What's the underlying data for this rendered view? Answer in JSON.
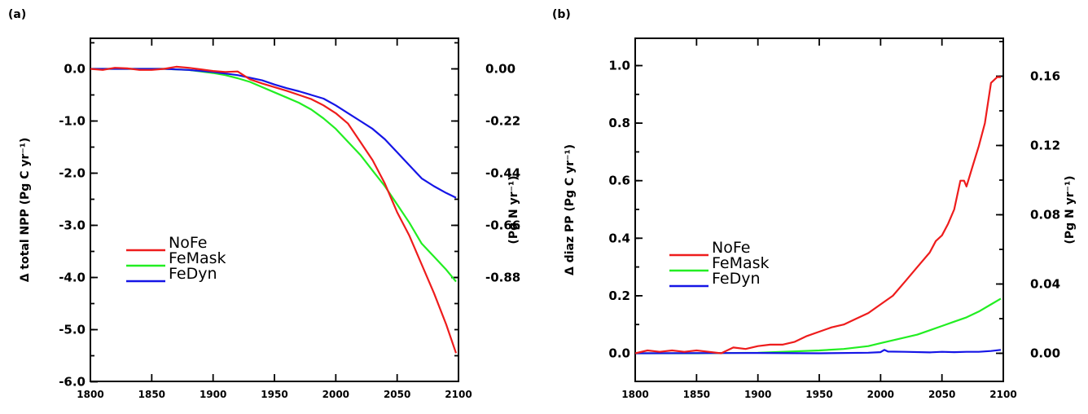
{
  "colors": {
    "NoFe": "#ee1c1c",
    "FeMask": "#22ee22",
    "FeDyn": "#1515e6"
  },
  "chart_data": [
    {
      "type": "line",
      "panel_label": "(a)",
      "ylabel": "Δ total NPP (Pg C yr⁻¹)",
      "ylabel_right": "(Pg N yr⁻¹)",
      "xlim": [
        1800,
        2100
      ],
      "ylim": [
        -6.0,
        0.6
      ],
      "x_ticks": [
        1800,
        1850,
        1900,
        1950,
        2000,
        2050,
        2100
      ],
      "y_ticks": [
        0.0,
        -1.0,
        -2.0,
        -3.0,
        -4.0,
        -5.0,
        -6.0
      ],
      "y_tick_labels": [
        "0.0",
        "-1.0",
        "-2.0",
        "-3.0",
        "-4.0",
        "-5.0",
        "-6.0"
      ],
      "y2_ticks": [
        0.0,
        -0.22,
        -0.44,
        -0.66,
        -0.88
      ],
      "y2_tick_labels": [
        "0.00",
        "-0.22",
        "-0.44",
        "-0.66",
        "-0.88"
      ],
      "legend_placement": "lower-left",
      "series": [
        {
          "name": "NoFe",
          "x": [
            1800,
            1810,
            1820,
            1830,
            1840,
            1850,
            1860,
            1870,
            1880,
            1890,
            1900,
            1910,
            1920,
            1930,
            1940,
            1950,
            1960,
            1970,
            1980,
            1990,
            2000,
            2010,
            2020,
            2030,
            2040,
            2050,
            2060,
            2070,
            2080,
            2090,
            2098
          ],
          "y": [
            0.0,
            -0.02,
            0.02,
            0.01,
            -0.02,
            -0.02,
            0.0,
            0.04,
            0.02,
            -0.01,
            -0.04,
            -0.06,
            -0.05,
            -0.2,
            -0.28,
            -0.35,
            -0.42,
            -0.5,
            -0.58,
            -0.7,
            -0.85,
            -1.05,
            -1.4,
            -1.75,
            -2.2,
            -2.75,
            -3.2,
            -3.75,
            -4.3,
            -4.9,
            -5.45
          ]
        },
        {
          "name": "FeMask",
          "x": [
            1800,
            1820,
            1840,
            1860,
            1880,
            1900,
            1910,
            1920,
            1930,
            1940,
            1950,
            1960,
            1970,
            1980,
            1990,
            2000,
            2010,
            2020,
            2030,
            2040,
            2050,
            2060,
            2070,
            2080,
            2090,
            2098
          ],
          "y": [
            0.0,
            0.0,
            0.0,
            0.0,
            -0.02,
            -0.08,
            -0.12,
            -0.18,
            -0.25,
            -0.35,
            -0.45,
            -0.55,
            -0.65,
            -0.78,
            -0.95,
            -1.15,
            -1.4,
            -1.65,
            -1.95,
            -2.25,
            -2.6,
            -2.95,
            -3.35,
            -3.6,
            -3.85,
            -4.08
          ]
        },
        {
          "name": "FeDyn",
          "x": [
            1800,
            1820,
            1840,
            1860,
            1880,
            1900,
            1920,
            1940,
            1950,
            1960,
            1970,
            1980,
            1990,
            2000,
            2010,
            2020,
            2030,
            2040,
            2050,
            2060,
            2070,
            2080,
            2090,
            2098
          ],
          "y": [
            0.0,
            0.0,
            0.0,
            0.0,
            -0.02,
            -0.06,
            -0.12,
            -0.22,
            -0.3,
            -0.37,
            -0.43,
            -0.5,
            -0.57,
            -0.7,
            -0.85,
            -1.0,
            -1.15,
            -1.35,
            -1.6,
            -1.85,
            -2.1,
            -2.25,
            -2.38,
            -2.47
          ]
        }
      ]
    },
    {
      "type": "line",
      "panel_label": "(b)",
      "ylabel": "Δ diaz PP (Pg C yr⁻¹)",
      "ylabel_right": "(Pg N yr⁻¹)",
      "xlim": [
        1800,
        2100
      ],
      "ylim": [
        -0.1,
        1.1
      ],
      "x_ticks": [
        1800,
        1850,
        1900,
        1950,
        2000,
        2050,
        2100
      ],
      "y_ticks": [
        0.0,
        0.2,
        0.4,
        0.6,
        0.8,
        1.0
      ],
      "y_tick_labels": [
        "0.0",
        "0.2",
        "0.4",
        "0.6",
        "0.8",
        "1.0"
      ],
      "y2_ticks": [
        0.0,
        0.04,
        0.08,
        0.12,
        0.16
      ],
      "y2_tick_labels": [
        "0.00",
        "0.04",
        "0.08",
        "0.12",
        "0.16"
      ],
      "legend_placement": "lower-left",
      "series": [
        {
          "name": "NoFe",
          "x": [
            1800,
            1810,
            1820,
            1830,
            1840,
            1850,
            1860,
            1870,
            1880,
            1890,
            1900,
            1910,
            1920,
            1930,
            1940,
            1950,
            1960,
            1970,
            1980,
            1990,
            2000,
            2010,
            2020,
            2030,
            2040,
            2045,
            2050,
            2055,
            2060,
            2065,
            2068,
            2070,
            2075,
            2080,
            2085,
            2090,
            2095,
            2098
          ],
          "y": [
            0.0,
            0.01,
            0.005,
            0.01,
            0.005,
            0.01,
            0.005,
            0.0,
            0.02,
            0.015,
            0.025,
            0.03,
            0.03,
            0.04,
            0.06,
            0.075,
            0.09,
            0.1,
            0.12,
            0.14,
            0.17,
            0.2,
            0.25,
            0.3,
            0.35,
            0.39,
            0.41,
            0.45,
            0.5,
            0.6,
            0.6,
            0.58,
            0.65,
            0.72,
            0.8,
            0.94,
            0.96,
            0.96
          ]
        },
        {
          "name": "FeMask",
          "x": [
            1800,
            1850,
            1900,
            1950,
            1970,
            1990,
            2000,
            2010,
            2020,
            2030,
            2040,
            2050,
            2060,
            2070,
            2080,
            2090,
            2098
          ],
          "y": [
            0.0,
            0.0,
            0.002,
            0.01,
            0.015,
            0.025,
            0.035,
            0.045,
            0.055,
            0.065,
            0.08,
            0.095,
            0.11,
            0.125,
            0.145,
            0.17,
            0.19
          ]
        },
        {
          "name": "FeDyn",
          "x": [
            1800,
            1900,
            1950,
            1990,
            2000,
            2003,
            2006,
            2020,
            2040,
            2050,
            2060,
            2070,
            2080,
            2090,
            2098
          ],
          "y": [
            0.0,
            0.001,
            0.0,
            0.002,
            0.004,
            0.012,
            0.006,
            0.005,
            0.003,
            0.005,
            0.004,
            0.005,
            0.005,
            0.008,
            0.012
          ]
        }
      ]
    }
  ]
}
